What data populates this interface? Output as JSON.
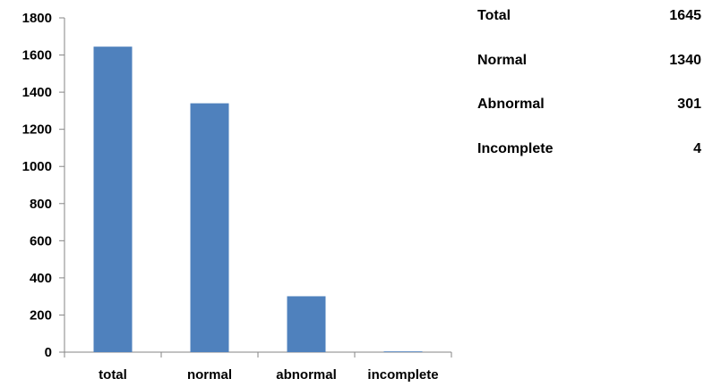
{
  "chart_data": {
    "type": "bar",
    "categories": [
      "total",
      "normal",
      "abnormal",
      "incomplete"
    ],
    "values": [
      1645,
      1340,
      301,
      4
    ],
    "ylim": [
      0,
      1800
    ],
    "yticks": [
      0,
      200,
      400,
      600,
      800,
      1000,
      1200,
      1400,
      1600,
      1800
    ],
    "grid": false,
    "legend": "none",
    "bar_color": "#4F81BD",
    "axis_color": "#868686"
  },
  "summary": {
    "rows": [
      {
        "label": "Total",
        "value": "1645"
      },
      {
        "label": "Normal",
        "value": "1340"
      },
      {
        "label": "Abnormal",
        "value": "301"
      },
      {
        "label": "Incomplete",
        "value": "4"
      }
    ]
  }
}
